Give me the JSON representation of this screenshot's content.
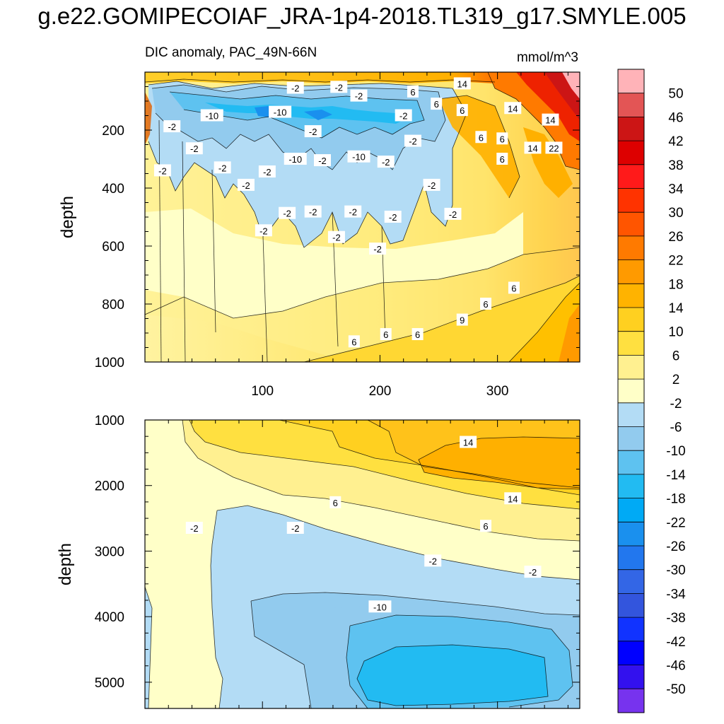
{
  "title": "g.e22.GOMIPECOIAF_JRA-1p4-2018.TL319_g17.SMYLE.005",
  "colorbar": {
    "levels": [
      50,
      46,
      42,
      38,
      34,
      30,
      26,
      22,
      18,
      14,
      10,
      6,
      2,
      -2,
      -6,
      -10,
      -14,
      -18,
      -22,
      -26,
      -30,
      -34,
      -38,
      -42,
      -46,
      -50
    ],
    "colors": [
      "#ffb3b8",
      "#e35555",
      "#cc1515",
      "#dd0000",
      "#ff1a1a",
      "#ff3300",
      "#ff5500",
      "#ff7a00",
      "#ff9a00",
      "#ffb300",
      "#ffd020",
      "#ffe040",
      "#fff090",
      "#ffffc8",
      "#b3dcf5",
      "#92cbee",
      "#5ec2f0",
      "#22bbf2",
      "#00aaf5",
      "#1a90ee",
      "#2277ee",
      "#3366e6",
      "#3355dd",
      "#1133ff",
      "#0000ff",
      "#3311ee",
      "#7733ee"
    ]
  },
  "chart_data": [
    {
      "type": "contour",
      "title": "DIC anomaly, PAC_49N-66N",
      "units": "mmol/m^3",
      "xlabel": "",
      "ylabel": "depth",
      "xlim": [
        0,
        370
      ],
      "ylim": [
        1000,
        0
      ],
      "xticks": [
        100,
        200,
        300
      ],
      "yticks": [
        200,
        400,
        600,
        800,
        1000
      ],
      "contour_labels": [
        {
          "text": "-2",
          "x": 128,
          "y": 55
        },
        {
          "text": "-2",
          "x": 165,
          "y": 52
        },
        {
          "text": "-2",
          "x": 182,
          "y": 82
        },
        {
          "text": "6",
          "x": 228,
          "y": 68
        },
        {
          "text": "14",
          "x": 270,
          "y": 40
        },
        {
          "text": "6",
          "x": 248,
          "y": 110
        },
        {
          "text": "6",
          "x": 270,
          "y": 132
        },
        {
          "text": "14",
          "x": 313,
          "y": 125
        },
        {
          "text": "14",
          "x": 345,
          "y": 165
        },
        {
          "text": "-10",
          "x": 57,
          "y": 150
        },
        {
          "text": "-10",
          "x": 115,
          "y": 138
        },
        {
          "text": "-2",
          "x": 23,
          "y": 188
        },
        {
          "text": "-2",
          "x": 220,
          "y": 150
        },
        {
          "text": "-2",
          "x": 143,
          "y": 205
        },
        {
          "text": "6",
          "x": 286,
          "y": 225
        },
        {
          "text": "6",
          "x": 304,
          "y": 230
        },
        {
          "text": "14",
          "x": 330,
          "y": 262
        },
        {
          "text": "22",
          "x": 348,
          "y": 262
        },
        {
          "text": "-2",
          "x": 42,
          "y": 264
        },
        {
          "text": "-2",
          "x": 228,
          "y": 238
        },
        {
          "text": "-10",
          "x": 128,
          "y": 300
        },
        {
          "text": "-10",
          "x": 182,
          "y": 292
        },
        {
          "text": "-2",
          "x": 151,
          "y": 305
        },
        {
          "text": "-2",
          "x": 205,
          "y": 310
        },
        {
          "text": "6",
          "x": 304,
          "y": 300
        },
        {
          "text": "-2",
          "x": 15,
          "y": 340
        },
        {
          "text": "-2",
          "x": 66,
          "y": 330
        },
        {
          "text": "-2",
          "x": 104,
          "y": 344
        },
        {
          "text": "-2",
          "x": 86,
          "y": 390
        },
        {
          "text": "-2",
          "x": 244,
          "y": 390
        },
        {
          "text": "-2",
          "x": 121,
          "y": 487
        },
        {
          "text": "-2",
          "x": 143,
          "y": 482
        },
        {
          "text": "-2",
          "x": 177,
          "y": 482
        },
        {
          "text": "-2",
          "x": 211,
          "y": 500
        },
        {
          "text": "-2",
          "x": 262,
          "y": 490
        },
        {
          "text": "-2",
          "x": 101,
          "y": 547
        },
        {
          "text": "-2",
          "x": 163,
          "y": 570
        },
        {
          "text": "-2",
          "x": 198,
          "y": 610
        },
        {
          "text": "6",
          "x": 314,
          "y": 745
        },
        {
          "text": "6",
          "x": 290,
          "y": 800
        },
        {
          "text": "9",
          "x": 270,
          "y": 855
        },
        {
          "text": "6",
          "x": 232,
          "y": 905
        },
        {
          "text": "6",
          "x": 205,
          "y": 905
        },
        {
          "text": "6",
          "x": 178,
          "y": 930
        }
      ]
    },
    {
      "type": "contour",
      "title": "",
      "xlabel": "",
      "ylabel": "depth",
      "xlim": [
        0,
        370
      ],
      "ylim": [
        5400,
        1000
      ],
      "yticks": [
        1000,
        2000,
        3000,
        4000,
        5000
      ],
      "contour_labels": [
        {
          "text": "14",
          "x": 275,
          "y": 1340
        },
        {
          "text": "14",
          "x": 313,
          "y": 2200
        },
        {
          "text": "6",
          "x": 162,
          "y": 2260
        },
        {
          "text": "6",
          "x": 290,
          "y": 2620
        },
        {
          "text": "-2",
          "x": 42,
          "y": 2650
        },
        {
          "text": "-2",
          "x": 128,
          "y": 2650
        },
        {
          "text": "-2",
          "x": 245,
          "y": 3150
        },
        {
          "text": "-2",
          "x": 330,
          "y": 3320
        },
        {
          "text": "-10",
          "x": 200,
          "y": 3850
        }
      ]
    }
  ]
}
